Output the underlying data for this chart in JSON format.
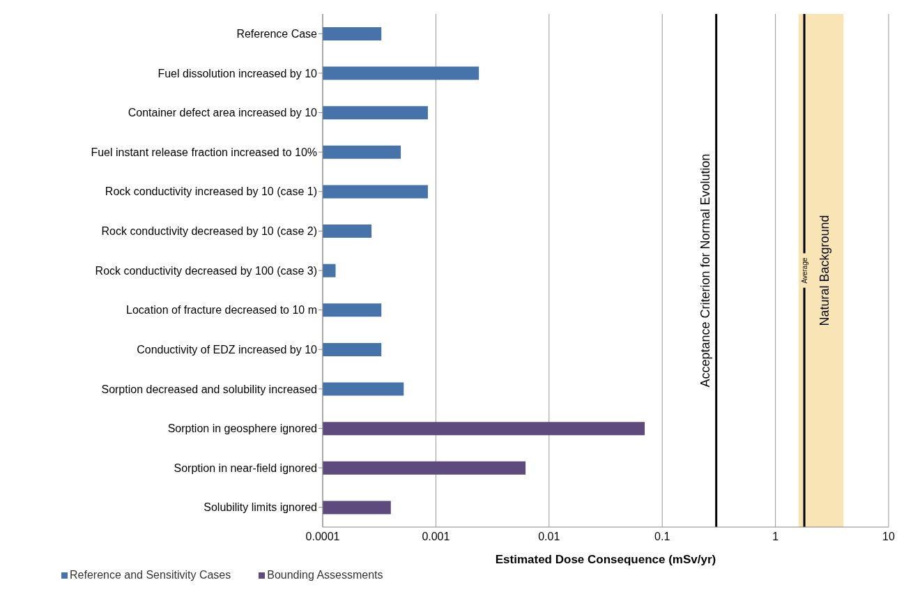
{
  "chart_data": {
    "type": "bar",
    "orientation": "horizontal",
    "xlabel": "Estimated Dose Consequence (mSv/yr)",
    "categories": [
      "Reference Case",
      "Fuel dissolution increased by 10",
      "Container defect area increased by 10",
      "Fuel instant release fraction increased to 10%",
      "Rock conductivity increased by 10 (case 1)",
      "Rock conductivity decreased by 10 (case 2)",
      "Rock conductivity decreased by 100 (case 3)",
      "Location of fracture decreased to 10 m",
      "Conductivity of EDZ increased by 10",
      "Sorption decreased and solubility increased",
      "Sorption in geosphere ignored",
      "Sorption in near-field ignored",
      "Solubility limits ignored"
    ],
    "series": [
      {
        "name": "Reference and Sensitivity Cases",
        "color": "#4673aa",
        "values": [
          0.00033,
          0.0024,
          0.00085,
          0.00049,
          0.00085,
          0.00027,
          0.00013,
          0.00033,
          0.00033,
          0.00052,
          null,
          null,
          null
        ]
      },
      {
        "name": "Bounding Assessments",
        "color": "#5e4a7d",
        "values": [
          null,
          null,
          null,
          null,
          null,
          null,
          null,
          null,
          null,
          null,
          0.07,
          0.0062,
          0.0004
        ]
      }
    ],
    "log": "x",
    "xlim": [
      0.0001,
      10
    ],
    "xticks": [
      0.0001,
      0.001,
      0.01,
      0.1,
      1,
      10
    ],
    "grid": "x",
    "legend": "bottom left",
    "ref_lines": [
      {
        "axis": "x",
        "value": 0.3,
        "label": "Acceptance Criterion for Normal Evolution",
        "color": "#000000"
      },
      {
        "axis": "x",
        "value": 1.8,
        "label": "Average",
        "color": "#000000"
      }
    ],
    "bands": [
      {
        "axis": "x",
        "from": 1.6,
        "to": 4,
        "label": "Natural Background",
        "color": "#f8e4b4"
      }
    ]
  }
}
